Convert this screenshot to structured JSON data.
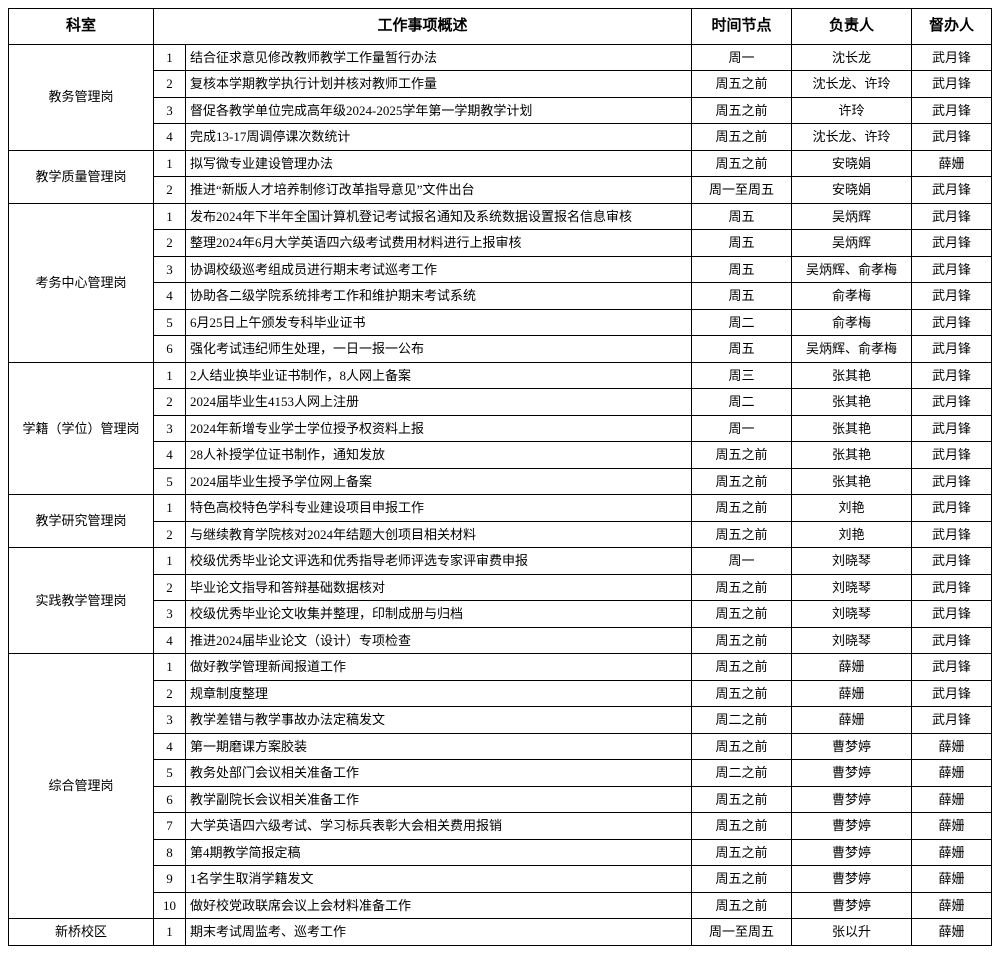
{
  "columns": [
    "科室",
    "工作事项概述",
    "时间节点",
    "负责人",
    "督办人"
  ],
  "rows": [
    {
      "dept": "教务管理岗",
      "deptSpan": 4,
      "num": "1",
      "desc": "结合征求意见修改教师教学工作量暂行办法",
      "time": "周一",
      "owner": "沈长龙",
      "super": "武月锋"
    },
    {
      "num": "2",
      "desc": "复核本学期教学执行计划并核对教师工作量",
      "time": "周五之前",
      "owner": "沈长龙、许玲",
      "super": "武月锋"
    },
    {
      "num": "3",
      "desc": "督促各教学单位完成高年级2024-2025学年第一学期教学计划",
      "time": "周五之前",
      "owner": "许玲",
      "super": "武月锋"
    },
    {
      "num": "4",
      "desc": "完成13-17周调停课次数统计",
      "time": "周五之前",
      "owner": "沈长龙、许玲",
      "super": "武月锋"
    },
    {
      "dept": "教学质量管理岗",
      "deptSpan": 2,
      "num": "1",
      "desc": "拟写微专业建设管理办法",
      "time": "周五之前",
      "owner": "安晓娟",
      "super": "薛姗"
    },
    {
      "num": "2",
      "desc": "推进“新版人才培养制修订改革指导意见”文件出台",
      "time": "周一至周五",
      "owner": "安晓娟",
      "super": "武月锋"
    },
    {
      "dept": "考务中心管理岗",
      "deptSpan": 6,
      "num": "1",
      "desc": "发布2024年下半年全国计算机登记考试报名通知及系统数据设置报名信息审核",
      "time": "周五",
      "owner": "吴炳辉",
      "super": "武月锋"
    },
    {
      "num": "2",
      "desc": "整理2024年6月大学英语四六级考试费用材料进行上报审核",
      "time": "周五",
      "owner": "吴炳辉",
      "super": "武月锋"
    },
    {
      "num": "3",
      "desc": "协调校级巡考组成员进行期末考试巡考工作",
      "time": "周五",
      "owner": "吴炳辉、俞孝梅",
      "super": "武月锋"
    },
    {
      "num": "4",
      "desc": "协助各二级学院系统排考工作和维护期末考试系统",
      "time": "周五",
      "owner": "俞孝梅",
      "super": "武月锋"
    },
    {
      "num": "5",
      "desc": "6月25日上午颁发专科毕业证书",
      "time": "周二",
      "owner": "俞孝梅",
      "super": "武月锋"
    },
    {
      "num": "6",
      "desc": "强化考试违纪师生处理，一日一报一公布",
      "time": "周五",
      "owner": "吴炳辉、俞孝梅",
      "super": "武月锋"
    },
    {
      "dept": "学籍（学位）管理岗",
      "deptSpan": 5,
      "num": "1",
      "desc": "2人结业换毕业证书制作，8人网上备案",
      "time": "周三",
      "owner": "张其艳",
      "super": "武月锋"
    },
    {
      "num": "2",
      "desc": "2024届毕业生4153人网上注册",
      "time": "周二",
      "owner": "张其艳",
      "super": "武月锋"
    },
    {
      "num": "3",
      "desc": "2024年新增专业学士学位授予权资料上报",
      "time": "周一",
      "owner": "张其艳",
      "super": "武月锋"
    },
    {
      "num": "4",
      "desc": "28人补授学位证书制作，通知发放",
      "time": "周五之前",
      "owner": "张其艳",
      "super": "武月锋"
    },
    {
      "num": "5",
      "desc": "2024届毕业生授予学位网上备案",
      "time": "周五之前",
      "owner": "张其艳",
      "super": "武月锋"
    },
    {
      "dept": "教学研究管理岗",
      "deptSpan": 2,
      "num": "1",
      "desc": "特色高校特色学科专业建设项目申报工作",
      "time": "周五之前",
      "owner": "刘艳",
      "super": "武月锋"
    },
    {
      "num": "2",
      "desc": "与继续教育学院核对2024年结题大创项目相关材料",
      "time": "周五之前",
      "owner": "刘艳",
      "super": "武月锋"
    },
    {
      "dept": "实践教学管理岗",
      "deptSpan": 4,
      "num": "1",
      "desc": "校级优秀毕业论文评选和优秀指导老师评选专家评审费申报",
      "time": "周一",
      "owner": "刘晓琴",
      "super": "武月锋"
    },
    {
      "num": "2",
      "desc": "毕业论文指导和答辩基础数据核对",
      "time": "周五之前",
      "owner": "刘晓琴",
      "super": "武月锋"
    },
    {
      "num": "3",
      "desc": "校级优秀毕业论文收集并整理，印制成册与归档",
      "time": "周五之前",
      "owner": "刘晓琴",
      "super": "武月锋"
    },
    {
      "num": "4",
      "desc": "推进2024届毕业论文（设计）专项检查",
      "time": "周五之前",
      "owner": "刘晓琴",
      "super": "武月锋"
    },
    {
      "dept": "综合管理岗",
      "deptSpan": 10,
      "num": "1",
      "desc": "做好教学管理新闻报道工作",
      "time": "周五之前",
      "owner": "薛姗",
      "super": "武月锋"
    },
    {
      "num": "2",
      "desc": "规章制度整理",
      "time": "周五之前",
      "owner": "薛姗",
      "super": "武月锋"
    },
    {
      "num": "3",
      "desc": "教学差错与教学事故办法定稿发文",
      "time": "周二之前",
      "owner": "薛姗",
      "super": "武月锋"
    },
    {
      "num": "4",
      "desc": "第一期磨课方案胶装",
      "time": "周五之前",
      "owner": "曹梦婷",
      "super": "薛姗"
    },
    {
      "num": "5",
      "desc": "教务处部门会议相关准备工作",
      "time": "周二之前",
      "owner": "曹梦婷",
      "super": "薛姗"
    },
    {
      "num": "6",
      "desc": "教学副院长会议相关准备工作",
      "time": "周五之前",
      "owner": "曹梦婷",
      "super": "薛姗"
    },
    {
      "num": "7",
      "desc": "大学英语四六级考试、学习标兵表彰大会相关费用报销",
      "time": "周五之前",
      "owner": "曹梦婷",
      "super": "薛姗"
    },
    {
      "num": "8",
      "desc": "第4期教学简报定稿",
      "time": "周五之前",
      "owner": "曹梦婷",
      "super": "薛姗"
    },
    {
      "num": "9",
      "desc": "1名学生取消学籍发文",
      "time": "周五之前",
      "owner": "曹梦婷",
      "super": "薛姗"
    },
    {
      "num": "10",
      "desc": "做好校党政联席会议上会材料准备工作",
      "time": "周五之前",
      "owner": "曹梦婷",
      "super": "薛姗"
    },
    {
      "dept": "新桥校区",
      "deptSpan": 1,
      "num": "1",
      "desc": "期末考试周监考、巡考工作",
      "time": "周一至周五",
      "owner": "张以升",
      "super": "薛姗"
    }
  ]
}
